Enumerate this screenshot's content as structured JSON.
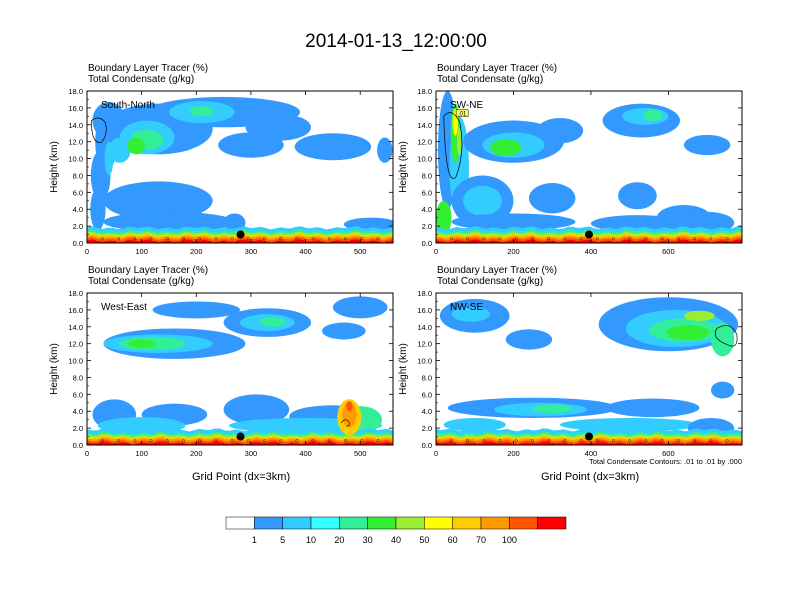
{
  "title": "2014-01-13_12:00:00",
  "chart_data": [
    {
      "type": "heatmap",
      "panel": "top-left",
      "title_line1": "Boundary Layer Tracer   (%)",
      "title_line2": "Total Condensate   (g/kg)",
      "annotation": "South-North",
      "ylabel": "Height (km)",
      "xlabel": "",
      "xlim": [
        0,
        560
      ],
      "ylim": [
        0,
        18
      ],
      "xticks": [
        0,
        100,
        200,
        300,
        400,
        500
      ],
      "yticks": [
        "0.0",
        "2.0",
        "4.0",
        "6.0",
        "8.0",
        "10.0",
        "12.0",
        "14.0",
        "16.0",
        "18.0"
      ],
      "marker_point": [
        281,
        1.0
      ],
      "footnote": ""
    },
    {
      "type": "heatmap",
      "panel": "top-right",
      "title_line1": "Boundary Layer Tracer   (%)",
      "title_line2": "Total Condensate   (g/kg)",
      "annotation": "SW-NE",
      "contour_label": ".01",
      "ylabel": "Height (km)",
      "xlabel": "",
      "xlim": [
        0,
        790
      ],
      "ylim": [
        0,
        18
      ],
      "xticks": [
        0,
        200,
        400,
        600
      ],
      "yticks": [
        "0.0",
        "2.0",
        "4.0",
        "6.0",
        "8.0",
        "10.0",
        "12.0",
        "14.0",
        "16.0",
        "18.0"
      ],
      "marker_point": [
        395,
        1.0
      ],
      "footnote": ""
    },
    {
      "type": "heatmap",
      "panel": "bottom-left",
      "title_line1": "Boundary Layer Tracer   (%)",
      "title_line2": "Total Condensate   (g/kg)",
      "annotation": "West-East",
      "ylabel": "Height (km)",
      "xlabel": "Grid Point (dx=3km)",
      "xlim": [
        0,
        560
      ],
      "ylim": [
        0,
        18
      ],
      "xticks": [
        0,
        100,
        200,
        300,
        400,
        500
      ],
      "yticks": [
        "0.0",
        "2.0",
        "4.0",
        "6.0",
        "8.0",
        "10.0",
        "12.0",
        "14.0",
        "16.0",
        "18.0"
      ],
      "marker_point": [
        281,
        1.0
      ],
      "footnote": ""
    },
    {
      "type": "heatmap",
      "panel": "bottom-right",
      "title_line1": "Boundary Layer Tracer   (%)",
      "title_line2": "Total Condensate   (g/kg)",
      "annotation": "NW-SE",
      "ylabel": "Height (km)",
      "xlabel": "Grid Point (dx=3km)",
      "xlim": [
        0,
        790
      ],
      "ylim": [
        0,
        18
      ],
      "xticks": [
        0,
        200,
        400,
        600
      ],
      "yticks": [
        "0.0",
        "2.0",
        "4.0",
        "6.0",
        "8.0",
        "10.0",
        "12.0",
        "14.0",
        "16.0",
        "18.0"
      ],
      "marker_point": [
        395,
        1.0
      ],
      "footnote": "Total Condensate Contours: .01 to .01 by .000"
    }
  ],
  "colorbar": {
    "labels": [
      "1",
      "5",
      "10",
      "20",
      "30",
      "40",
      "50",
      "60",
      "70",
      "100"
    ],
    "colors": [
      "#ffffff",
      "#3399ff",
      "#33ccff",
      "#33ffff",
      "#33ee99",
      "#33ee33",
      "#99ee33",
      "#ffff00",
      "#ffcc00",
      "#ff9900",
      "#ff5500",
      "#ff0000"
    ]
  },
  "plot_colors": {
    "blue": "#3399ff",
    "cyan": "#33ccff",
    "aqua": "#33ffff",
    "teal": "#33ee99",
    "green": "#33ee33",
    "lime": "#99ee33",
    "yellow": "#ffff00",
    "gold": "#ffcc00",
    "orange": "#ff9900",
    "red_orange": "#ff5500",
    "red": "#ff0000"
  }
}
